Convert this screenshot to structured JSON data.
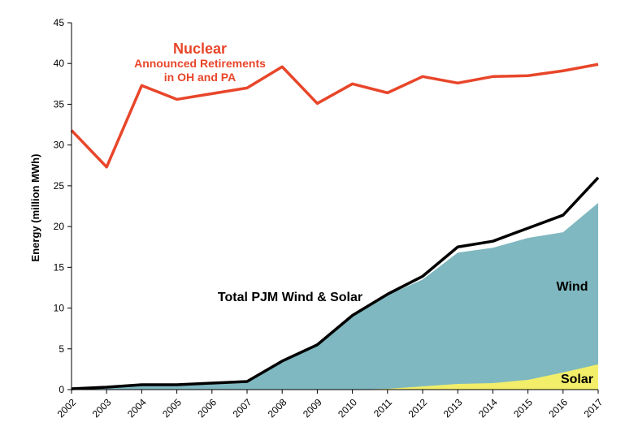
{
  "chart_data": {
    "type": "area",
    "title": "",
    "xlabel": "",
    "ylabel": "Energy (million MWh)",
    "ylim": [
      0,
      45
    ],
    "yticks": [
      0,
      5,
      10,
      15,
      20,
      25,
      30,
      35,
      40,
      45
    ],
    "grid": false,
    "categories": [
      "2002",
      "2003",
      "2004",
      "2005",
      "2006",
      "2007",
      "2008",
      "2009",
      "2010",
      "2011",
      "2012",
      "2013",
      "2014",
      "2015",
      "2016",
      "2017"
    ],
    "series": [
      {
        "name": "Nuclear",
        "kind": "line",
        "color": "#e8462a",
        "values": [
          31.8,
          27.3,
          37.3,
          35.6,
          36.3,
          37.0,
          39.6,
          35.1,
          37.5,
          36.4,
          38.4,
          37.6,
          38.4,
          38.5,
          39.1,
          39.9
        ]
      },
      {
        "name": "Total PJM Wind & Solar",
        "kind": "line",
        "color": "#000000",
        "values": [
          0.1,
          0.3,
          0.6,
          0.6,
          0.8,
          1.0,
          3.5,
          5.5,
          9.1,
          11.7,
          13.9,
          17.5,
          18.2,
          19.8,
          21.4,
          26.0
        ]
      },
      {
        "name": "Wind",
        "kind": "area",
        "color": "#7fb8c0",
        "values": [
          0.1,
          0.3,
          0.6,
          0.6,
          0.8,
          1.0,
          3.5,
          5.5,
          9.1,
          11.6,
          13.5,
          16.8,
          17.4,
          18.6,
          19.3,
          22.9
        ]
      },
      {
        "name": "Solar",
        "kind": "area",
        "color": "#f2ee6a",
        "values": [
          0,
          0,
          0,
          0,
          0,
          0,
          0,
          0,
          0,
          0.1,
          0.4,
          0.7,
          0.8,
          1.2,
          2.1,
          3.1
        ]
      }
    ],
    "annotations": {
      "nuclear_title": "Nuclear",
      "nuclear_line1": "Announced Retirements",
      "nuclear_line2": "in OH and PA",
      "total": "Total PJM Wind & Solar",
      "wind": "Wind",
      "solar": "Solar"
    }
  }
}
